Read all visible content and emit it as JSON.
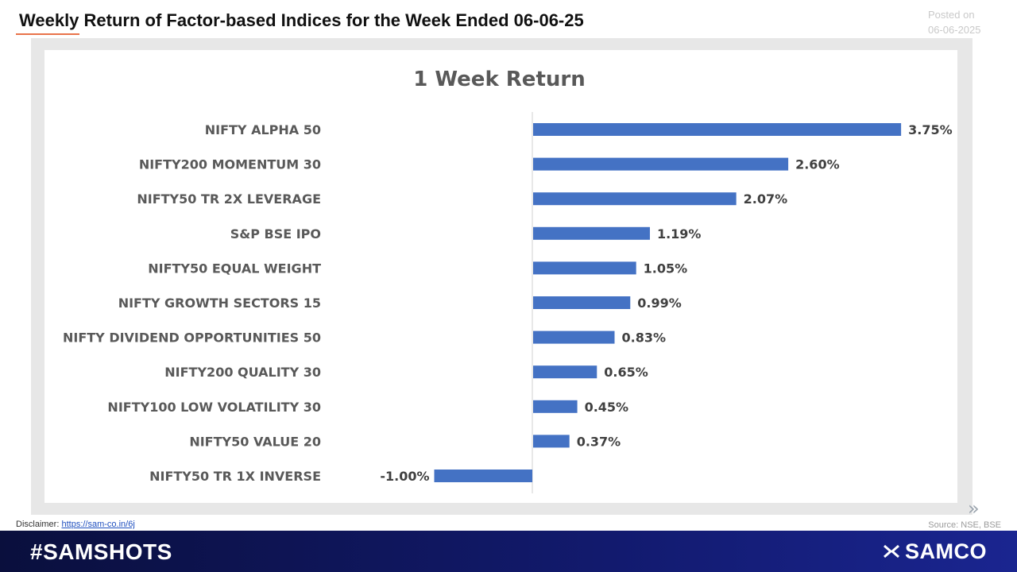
{
  "header": {
    "title": "Weekly Return of Factor-based Indices for the Week Ended 06-06-25",
    "posted_label": "Posted on",
    "posted_date": "06-06-2025"
  },
  "chart_data": {
    "type": "bar",
    "orientation": "horizontal",
    "title": "1 Week Return",
    "categories": [
      "NIFTY ALPHA 50",
      "NIFTY200 MOMENTUM 30",
      "NIFTY50 TR 2X LEVERAGE",
      "S&P BSE IPO",
      "NIFTY50 EQUAL WEIGHT",
      "NIFTY GROWTH SECTORS 15",
      "NIFTY DIVIDEND OPPORTUNITIES 50",
      "NIFTY200 QUALITY 30",
      "NIFTY100 LOW VOLATILITY 30",
      "NIFTY50 VALUE 20",
      "NIFTY50 TR 1X INVERSE"
    ],
    "values": [
      3.75,
      2.6,
      2.07,
      1.19,
      1.05,
      0.99,
      0.83,
      0.65,
      0.45,
      0.37,
      -1.0
    ],
    "data_labels": [
      "3.75%",
      "2.60%",
      "2.07%",
      "1.19%",
      "1.05%",
      "0.99%",
      "0.83%",
      "0.65%",
      "0.45%",
      "0.37%",
      "-1.00%"
    ],
    "unit": "%",
    "xlim": [
      -1.0,
      3.75
    ],
    "grid": false,
    "legend": "none",
    "bar_color": "#4472c4"
  },
  "footer": {
    "disclaimer_label": "Disclaimer:",
    "disclaimer_link": "https://sam-co.in/6j",
    "source": "Source: NSE, BSE",
    "hashtag": "#SAMSHOTS",
    "brand": "SAMCO"
  },
  "icons": {
    "next": "double-chevron-right-icon",
    "logo": "samco-logo-icon"
  }
}
